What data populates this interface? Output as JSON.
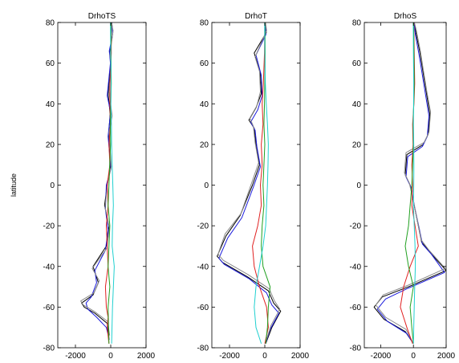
{
  "chart_data": [
    {
      "type": "line",
      "title": "DrhoTS",
      "xlabel": "",
      "ylabel": "latitude",
      "xlim": [
        -3000,
        2000
      ],
      "ylim": [
        -80,
        80
      ],
      "xticks": [
        -2000,
        0,
        2000
      ],
      "yticks": [
        -80,
        -60,
        -40,
        -20,
        0,
        20,
        40,
        60,
        80
      ],
      "grid": false,
      "series": [
        {
          "color": "#000000",
          "x": [
            60,
            120,
            -60,
            10,
            -150,
            -30,
            -120,
            -20,
            -200,
            -350,
            -100,
            -250,
            -1000,
            -700,
            -1000,
            -1650,
            -1500,
            -900,
            -200,
            -100
          ],
          "y": [
            80,
            75,
            65,
            60,
            45,
            35,
            25,
            10,
            0,
            -10,
            -20,
            -30,
            -40,
            -48,
            -54,
            -58,
            -60,
            -63,
            -68,
            -75
          ]
        },
        {
          "color": "#1a1adc",
          "x": [
            60,
            100,
            -80,
            -20,
            -200,
            -10,
            -150,
            10,
            -250,
            -300,
            -150,
            -300,
            -900,
            -800,
            -1100,
            -1400,
            -1300,
            -800,
            -250,
            -80
          ],
          "y": [
            80,
            74,
            66,
            60,
            44,
            36,
            24,
            8,
            0,
            -12,
            -22,
            -32,
            -42,
            -48,
            -55,
            -58,
            -61,
            -65,
            -70,
            -76
          ]
        },
        {
          "color": "#8a8a8a",
          "x": [
            40,
            130,
            -40,
            20,
            -100,
            80,
            -100,
            30,
            -180,
            -320,
            -80,
            -220,
            -1050,
            -650,
            -950,
            -1700,
            -1550,
            -950,
            -180,
            -60
          ],
          "y": [
            80,
            76,
            64,
            59,
            46,
            34,
            26,
            9,
            1,
            -11,
            -21,
            -31,
            -41,
            -47,
            -53,
            -57,
            -59,
            -62,
            -67,
            -74
          ]
        },
        {
          "color": "#e02020",
          "x": [
            20,
            30,
            -40,
            -50,
            -10,
            -100,
            -50,
            -200,
            -150,
            -250,
            -200,
            -150,
            -300,
            -250,
            -150,
            -200,
            -100
          ],
          "y": [
            80,
            65,
            50,
            40,
            30,
            20,
            10,
            0,
            -10,
            -20,
            -30,
            -40,
            -50,
            -60,
            -65,
            -70,
            -78
          ]
        },
        {
          "color": "#20a020",
          "x": [
            20,
            10,
            30,
            0,
            -20,
            -10,
            -60,
            -100,
            -150,
            -50,
            -100,
            -150,
            -50,
            -150,
            -100
          ],
          "y": [
            80,
            65,
            50,
            40,
            30,
            20,
            10,
            0,
            -10,
            -20,
            -30,
            -40,
            -50,
            -60,
            -78
          ]
        },
        {
          "color": "#20d0d0",
          "x": [
            -20,
            0,
            20,
            10,
            40,
            50,
            80,
            120,
            150,
            100,
            80,
            200,
            150,
            100,
            50
          ],
          "y": [
            80,
            65,
            50,
            40,
            30,
            20,
            10,
            0,
            -10,
            -20,
            -30,
            -40,
            -50,
            -60,
            -78
          ]
        }
      ]
    },
    {
      "type": "line",
      "title": "DrhoT",
      "xlabel": "",
      "ylabel": "",
      "xlim": [
        -3000,
        2000
      ],
      "ylim": [
        -80,
        80
      ],
      "xticks": [
        -2000,
        0,
        2000
      ],
      "yticks": [
        -80,
        -60,
        -40,
        -20,
        0,
        20,
        40,
        60,
        80
      ],
      "grid": false,
      "series": [
        {
          "color": "#000000",
          "x": [
            30,
            80,
            -600,
            -250,
            -200,
            -500,
            -900,
            -600,
            -500,
            -300,
            -700,
            -1400,
            -2200,
            -2700,
            -2400,
            -1000,
            200,
            500,
            900,
            400,
            50
          ],
          "y": [
            80,
            75,
            65,
            55,
            45,
            38,
            32,
            28,
            20,
            10,
            0,
            -15,
            -25,
            -35,
            -38,
            -45,
            -52,
            -58,
            -62,
            -70,
            -78
          ]
        },
        {
          "color": "#1a1adc",
          "x": [
            20,
            60,
            -500,
            -200,
            -150,
            -400,
            -800,
            -550,
            -450,
            -250,
            -650,
            -1300,
            -2100,
            -2600,
            -2300,
            -900,
            100,
            400,
            800,
            300,
            40
          ],
          "y": [
            80,
            74,
            64,
            54,
            44,
            37,
            31,
            27,
            19,
            9,
            -1,
            -16,
            -26,
            -36,
            -39,
            -46,
            -53,
            -59,
            -63,
            -71,
            -78
          ]
        },
        {
          "color": "#8a8a8a",
          "x": [
            40,
            100,
            -550,
            -300,
            -250,
            -450,
            -850,
            -650,
            -550,
            -350,
            -750,
            -1350,
            -2250,
            -2650,
            -2350,
            -950,
            250,
            550,
            850,
            350,
            60
          ],
          "y": [
            80,
            76,
            63,
            56,
            46,
            39,
            33,
            29,
            21,
            11,
            1,
            -14,
            -24,
            -34,
            -37,
            -44,
            -51,
            -57,
            -61,
            -69,
            -77
          ]
        },
        {
          "color": "#e02020",
          "x": [
            0,
            -20,
            -80,
            -150,
            -100,
            -200,
            -150,
            -250,
            -200,
            -400,
            -700,
            -600,
            -300,
            100,
            200,
            0
          ],
          "y": [
            80,
            65,
            50,
            40,
            30,
            20,
            10,
            0,
            -10,
            -20,
            -30,
            -40,
            -50,
            -60,
            -70,
            -78
          ]
        },
        {
          "color": "#20a020",
          "x": [
            10,
            20,
            0,
            -20,
            -50,
            0,
            -50,
            -100,
            -50,
            -150,
            -200,
            -100,
            300,
            200,
            150,
            50
          ],
          "y": [
            80,
            65,
            50,
            40,
            30,
            20,
            10,
            0,
            -10,
            -20,
            -30,
            -40,
            -50,
            -60,
            -70,
            -78
          ]
        },
        {
          "color": "#20d0d0",
          "x": [
            -10,
            0,
            30,
            80,
            150,
            200,
            180,
            150,
            100,
            50,
            -100,
            -300,
            -500,
            -600,
            -500,
            -200
          ],
          "y": [
            80,
            65,
            50,
            40,
            30,
            20,
            10,
            0,
            -10,
            -20,
            -30,
            -40,
            -50,
            -60,
            -70,
            -78
          ]
        }
      ]
    },
    {
      "type": "line",
      "title": "DrhoS",
      "xlabel": "",
      "ylabel": "",
      "xlim": [
        -3000,
        2000
      ],
      "ylim": [
        -80,
        80
      ],
      "xticks": [
        -2000,
        0,
        2000
      ],
      "yticks": [
        -80,
        -60,
        -40,
        -20,
        0,
        20,
        40,
        60,
        80
      ],
      "grid": false,
      "series": [
        {
          "color": "#000000",
          "x": [
            50,
            150,
            400,
            600,
            800,
            1000,
            900,
            600,
            -400,
            -500,
            -200,
            50,
            300,
            500,
            1000,
            2000,
            -300,
            -1900,
            -2400,
            -1800,
            -500,
            0
          ],
          "y": [
            80,
            75,
            65,
            55,
            45,
            35,
            25,
            20,
            15,
            5,
            0,
            -10,
            -20,
            -28,
            -33,
            -42,
            -50,
            -55,
            -60,
            -66,
            -72,
            -78
          ]
        },
        {
          "color": "#1a1adc",
          "x": [
            40,
            120,
            350,
            550,
            750,
            950,
            850,
            550,
            -350,
            -450,
            -150,
            80,
            350,
            550,
            1100,
            1900,
            -400,
            -1700,
            -2200,
            -1600,
            -400,
            0
          ],
          "y": [
            80,
            74,
            64,
            54,
            44,
            34,
            24,
            19,
            14,
            4,
            -1,
            -11,
            -21,
            -29,
            -34,
            -43,
            -51,
            -56,
            -61,
            -67,
            -73,
            -78
          ]
        },
        {
          "color": "#8a8a8a",
          "x": [
            60,
            180,
            420,
            620,
            820,
            1050,
            950,
            650,
            -450,
            -550,
            -250,
            30,
            280,
            480,
            950,
            1950,
            -250,
            -1850,
            -2300,
            -1700,
            -450,
            0
          ],
          "y": [
            80,
            76,
            66,
            56,
            46,
            36,
            26,
            21,
            16,
            6,
            1,
            -9,
            -19,
            -27,
            -32,
            -41,
            -49,
            -54,
            -59,
            -65,
            -71,
            -78
          ]
        },
        {
          "color": "#e02020",
          "x": [
            20,
            50,
            80,
            30,
            -50,
            -20,
            -100,
            -50,
            -100,
            100,
            300,
            -200,
            -600,
            -800,
            -400,
            -50
          ],
          "y": [
            80,
            65,
            50,
            40,
            30,
            20,
            10,
            0,
            -10,
            -20,
            -30,
            -40,
            -50,
            -60,
            -70,
            -78
          ]
        },
        {
          "color": "#20a020",
          "x": [
            10,
            30,
            50,
            20,
            -20,
            0,
            -50,
            -100,
            -200,
            -300,
            -500,
            -300,
            0,
            -200,
            -100,
            0
          ],
          "y": [
            80,
            65,
            50,
            40,
            30,
            20,
            10,
            0,
            -10,
            -20,
            -30,
            -40,
            -50,
            -60,
            -70,
            -78
          ]
        },
        {
          "color": "#20d0d0",
          "x": [
            -10,
            0,
            20,
            10,
            0,
            20,
            30,
            20,
            0,
            50,
            100,
            120,
            80,
            50,
            20,
            0
          ],
          "y": [
            80,
            65,
            50,
            40,
            30,
            20,
            10,
            0,
            -10,
            -20,
            -30,
            -40,
            -50,
            -60,
            -70,
            -78
          ]
        }
      ]
    }
  ]
}
